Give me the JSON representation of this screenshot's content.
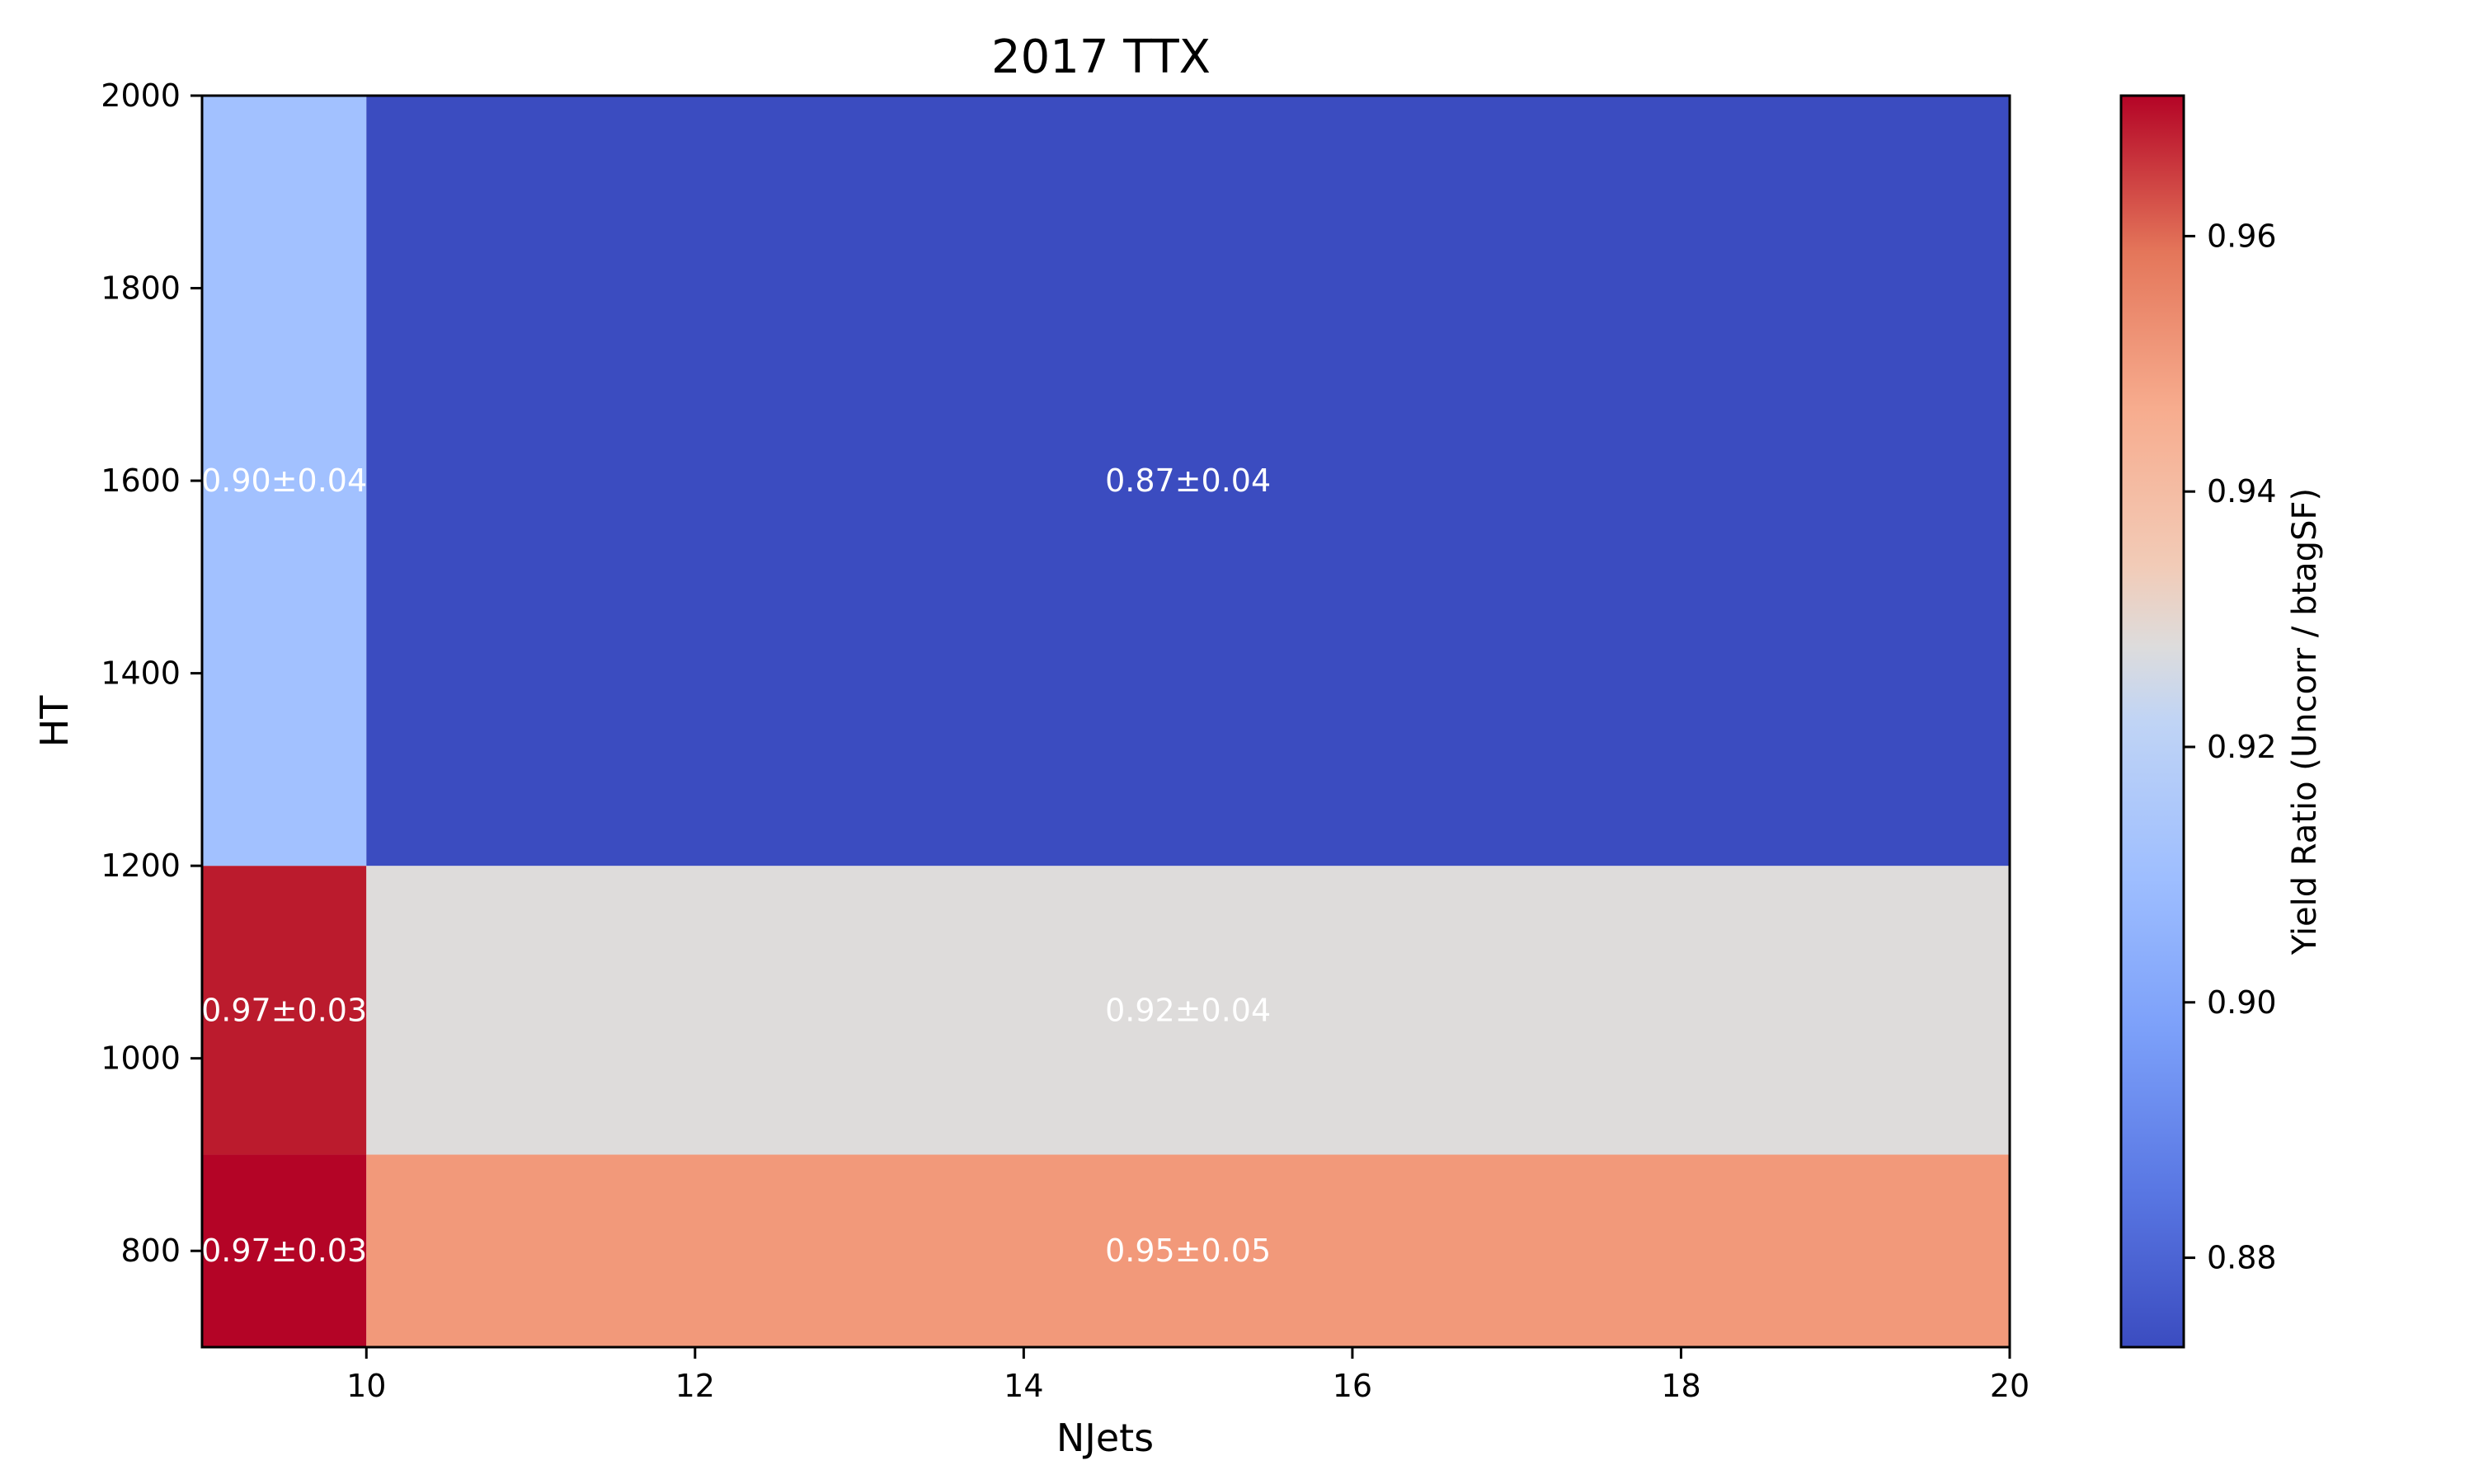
{
  "chart_data": {
    "type": "heatmap",
    "title": "2017 TTX",
    "xlabel": "NJets",
    "ylabel": "HT",
    "colorbar_label": "Yield Ratio (Uncorr / btagSF)",
    "colormap": "coolwarm",
    "color_range": [
      0.873,
      0.971
    ],
    "xlim": [
      9,
      20
    ],
    "ylim": [
      700,
      2000
    ],
    "x_ticks": [
      10,
      12,
      14,
      16,
      18,
      20
    ],
    "y_ticks": [
      800,
      1000,
      1200,
      1400,
      1600,
      1800,
      2000
    ],
    "colorbar_ticks": [
      0.88,
      0.9,
      0.92,
      0.94,
      0.96
    ],
    "colorbar_tick_labels": [
      "0.88",
      "0.90",
      "0.92",
      "0.94",
      "0.96"
    ],
    "x_bin_edges": [
      9,
      10,
      20
    ],
    "y_bin_edges": [
      700,
      900,
      1200,
      2000
    ],
    "cells": [
      {
        "x_bin": [
          9,
          10
        ],
        "y_bin": [
          700,
          900
        ],
        "value": 0.97,
        "label": "0.97±0.03",
        "color": "#b40426"
      },
      {
        "x_bin": [
          10,
          20
        ],
        "y_bin": [
          700,
          900
        ],
        "value": 0.95,
        "label": "0.95±0.05",
        "color": "#f2997a"
      },
      {
        "x_bin": [
          9,
          10
        ],
        "y_bin": [
          900,
          1200
        ],
        "value": 0.966,
        "label": "0.97±0.03",
        "color": "#bb1b2d"
      },
      {
        "x_bin": [
          10,
          20
        ],
        "y_bin": [
          900,
          1200
        ],
        "value": 0.922,
        "label": "0.92±0.04",
        "color": "#dedcdb"
      },
      {
        "x_bin": [
          9,
          10
        ],
        "y_bin": [
          1200,
          2000
        ],
        "value": 0.9,
        "label": "0.90±0.04",
        "color": "#a2c1ff"
      },
      {
        "x_bin": [
          10,
          20
        ],
        "y_bin": [
          1200,
          2000
        ],
        "value": 0.873,
        "label": "0.87±0.04",
        "color": "#3b4cc0"
      }
    ]
  }
}
